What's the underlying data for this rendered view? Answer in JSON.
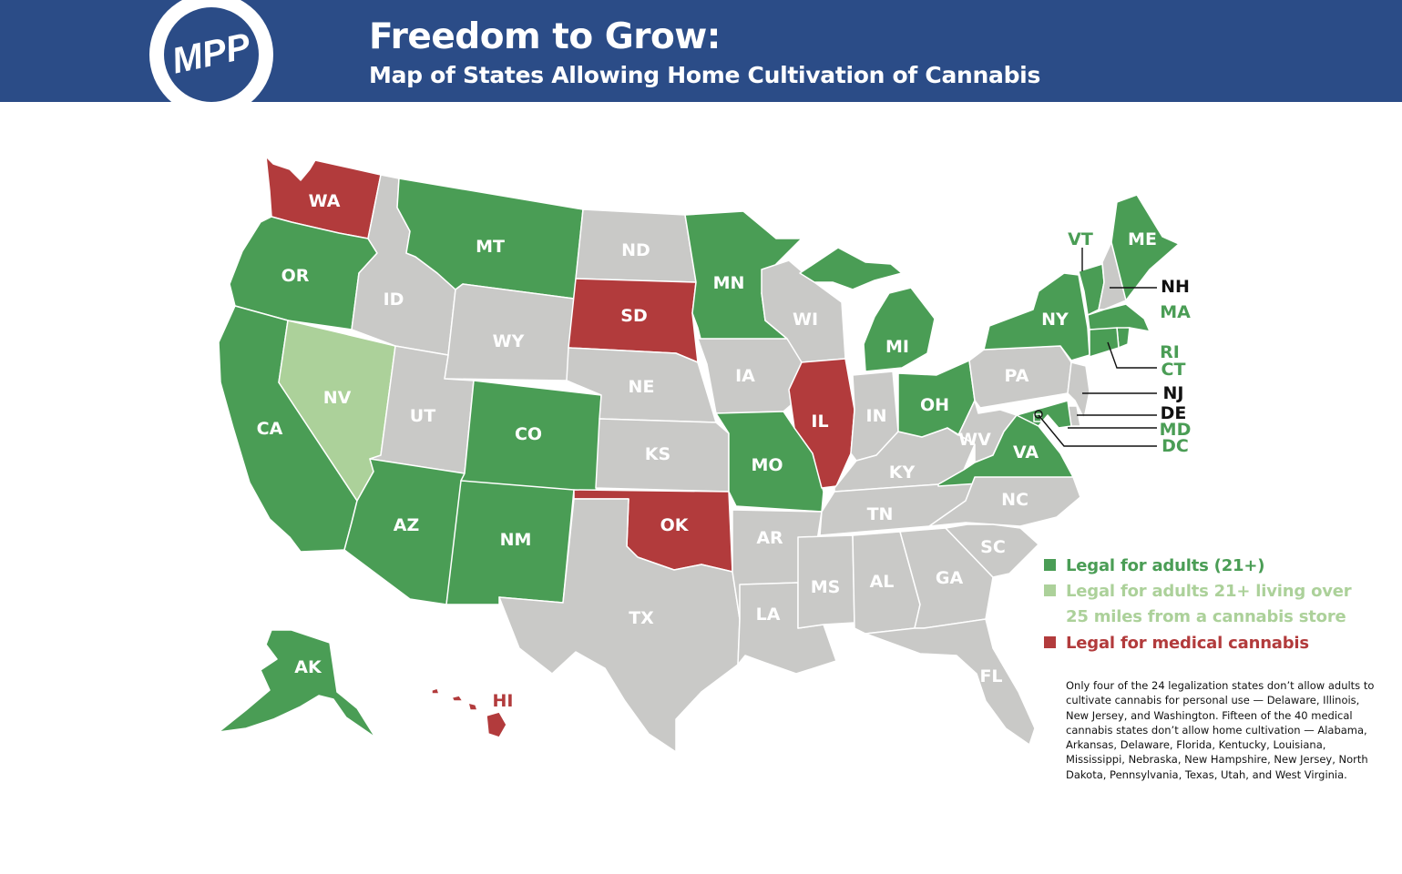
{
  "header": {
    "logo_text": "MPP",
    "title": "Freedom to Grow:",
    "subtitle": "Map of States Allowing Home Cultivation of Cannabis"
  },
  "colors": {
    "header_bg": "#2b4c87",
    "adult_use": "#4a9d55",
    "adult_use_distance": "#acd19a",
    "medical": "#b23b3c",
    "none": "#c9c9c7"
  },
  "legend": {
    "adult": "Legal for adults (21+)",
    "distance_line1": "Legal for adults 21+ living over",
    "distance_line2": "25 miles from a cannabis store",
    "medical": "Legal for medical cannabis"
  },
  "note": "Only four of the 24 legalization states don’t allow adults to cultivate cannabis for personal use — Delaware, Illinois, New Jersey, and Washington. Fifteen of the 40 medical cannabis states don’t allow home cultivation — Alabama, Arkansas, Delaware, Florida, Kentucky, Louisiana, Mississippi, Nebraska,  New Hampshire, New Jersey, North Dakota, Pennsylvania, Texas, Utah, and West Virginia.",
  "states": [
    {
      "abbr": "WA",
      "status": "medical"
    },
    {
      "abbr": "OR",
      "status": "adult"
    },
    {
      "abbr": "CA",
      "status": "adult"
    },
    {
      "abbr": "NV",
      "status": "adult_distance"
    },
    {
      "abbr": "ID",
      "status": "none"
    },
    {
      "abbr": "MT",
      "status": "adult"
    },
    {
      "abbr": "WY",
      "status": "none"
    },
    {
      "abbr": "UT",
      "status": "none"
    },
    {
      "abbr": "AZ",
      "status": "adult"
    },
    {
      "abbr": "CO",
      "status": "adult"
    },
    {
      "abbr": "NM",
      "status": "adult"
    },
    {
      "abbr": "ND",
      "status": "none"
    },
    {
      "abbr": "SD",
      "status": "medical"
    },
    {
      "abbr": "NE",
      "status": "none"
    },
    {
      "abbr": "KS",
      "status": "none"
    },
    {
      "abbr": "OK",
      "status": "medical"
    },
    {
      "abbr": "TX",
      "status": "none"
    },
    {
      "abbr": "MN",
      "status": "adult"
    },
    {
      "abbr": "IA",
      "status": "none"
    },
    {
      "abbr": "MO",
      "status": "adult"
    },
    {
      "abbr": "AR",
      "status": "none"
    },
    {
      "abbr": "LA",
      "status": "none"
    },
    {
      "abbr": "WI",
      "status": "none"
    },
    {
      "abbr": "IL",
      "status": "medical"
    },
    {
      "abbr": "MS",
      "status": "none"
    },
    {
      "abbr": "MI",
      "status": "adult"
    },
    {
      "abbr": "IN",
      "status": "none"
    },
    {
      "abbr": "KY",
      "status": "none"
    },
    {
      "abbr": "TN",
      "status": "none"
    },
    {
      "abbr": "AL",
      "status": "none"
    },
    {
      "abbr": "OH",
      "status": "adult"
    },
    {
      "abbr": "GA",
      "status": "none"
    },
    {
      "abbr": "FL",
      "status": "none"
    },
    {
      "abbr": "WV",
      "status": "none"
    },
    {
      "abbr": "VA",
      "status": "adult"
    },
    {
      "abbr": "NC",
      "status": "none"
    },
    {
      "abbr": "SC",
      "status": "none"
    },
    {
      "abbr": "PA",
      "status": "none"
    },
    {
      "abbr": "NY",
      "status": "adult"
    },
    {
      "abbr": "VT",
      "status": "adult"
    },
    {
      "abbr": "NH",
      "status": "none"
    },
    {
      "abbr": "ME",
      "status": "adult"
    },
    {
      "abbr": "MA",
      "status": "adult"
    },
    {
      "abbr": "RI",
      "status": "adult"
    },
    {
      "abbr": "CT",
      "status": "adult"
    },
    {
      "abbr": "NJ",
      "status": "none"
    },
    {
      "abbr": "DE",
      "status": "none"
    },
    {
      "abbr": "MD",
      "status": "adult"
    },
    {
      "abbr": "DC",
      "status": "adult"
    },
    {
      "abbr": "AK",
      "status": "adult"
    },
    {
      "abbr": "HI",
      "status": "medical"
    }
  ]
}
